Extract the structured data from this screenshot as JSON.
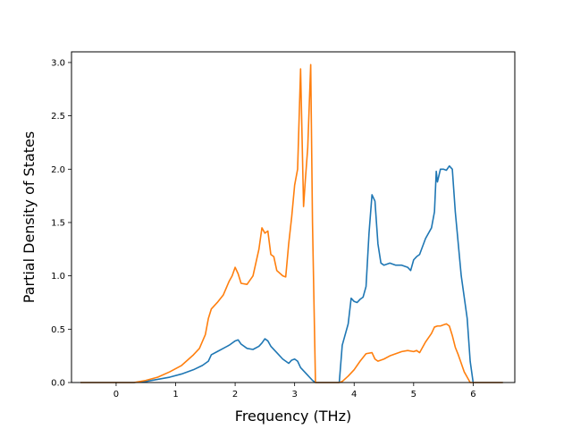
{
  "chart_data": {
    "type": "line",
    "title": "",
    "xlabel": "Frequency (THz)",
    "ylabel": "Partial Density of States",
    "xlim": [
      -0.75,
      6.7
    ],
    "ylim": [
      0.0,
      3.1
    ],
    "xticks": [
      0,
      1,
      2,
      3,
      4,
      5,
      6
    ],
    "xtick_labels": [
      "0",
      "1",
      "2",
      "3",
      "4",
      "5",
      "6"
    ],
    "yticks": [
      0.0,
      0.5,
      1.0,
      1.5,
      2.0,
      2.5,
      3.0
    ],
    "ytick_labels": [
      "0.0",
      "0.5",
      "1.0",
      "1.5",
      "2.0",
      "2.5",
      "3.0"
    ],
    "grid": false,
    "legend": "none",
    "series": [
      {
        "color": "#1f77b4",
        "x": [
          -0.6,
          0.0,
          0.3,
          0.5,
          0.7,
          0.9,
          1.1,
          1.3,
          1.45,
          1.55,
          1.6,
          1.7,
          1.8,
          1.9,
          2.0,
          2.05,
          2.1,
          2.2,
          2.3,
          2.4,
          2.45,
          2.5,
          2.55,
          2.6,
          2.7,
          2.8,
          2.9,
          2.95,
          3.0,
          3.05,
          3.1,
          3.2,
          3.3,
          3.35,
          3.5,
          3.75,
          3.8,
          3.9,
          3.95,
          4.0,
          4.05,
          4.1,
          4.15,
          4.2,
          4.25,
          4.3,
          4.35,
          4.4,
          4.45,
          4.5,
          4.6,
          4.7,
          4.8,
          4.9,
          4.95,
          5.0,
          5.05,
          5.1,
          5.2,
          5.3,
          5.35,
          5.38,
          5.4,
          5.45,
          5.5,
          5.55,
          5.6,
          5.65,
          5.7,
          5.8,
          5.85,
          5.9,
          5.95,
          6.0,
          6.5
        ],
        "values": [
          0.0,
          0.0,
          0.0,
          0.01,
          0.03,
          0.05,
          0.08,
          0.12,
          0.16,
          0.2,
          0.26,
          0.29,
          0.32,
          0.35,
          0.39,
          0.4,
          0.36,
          0.32,
          0.31,
          0.34,
          0.37,
          0.41,
          0.39,
          0.34,
          0.28,
          0.22,
          0.18,
          0.21,
          0.22,
          0.2,
          0.14,
          0.08,
          0.02,
          0.0,
          0.0,
          0.0,
          0.35,
          0.55,
          0.79,
          0.76,
          0.75,
          0.78,
          0.8,
          0.9,
          1.4,
          1.76,
          1.7,
          1.3,
          1.12,
          1.1,
          1.12,
          1.1,
          1.1,
          1.08,
          1.05,
          1.15,
          1.18,
          1.2,
          1.35,
          1.45,
          1.6,
          1.98,
          1.88,
          2.0,
          2.0,
          1.99,
          2.03,
          2.0,
          1.6,
          1.0,
          0.8,
          0.6,
          0.2,
          0.0,
          0.0
        ]
      },
      {
        "color": "#ff7f0e",
        "x": [
          -0.6,
          0.0,
          0.3,
          0.5,
          0.7,
          0.9,
          1.1,
          1.3,
          1.4,
          1.5,
          1.55,
          1.6,
          1.7,
          1.8,
          1.9,
          1.95,
          2.0,
          2.05,
          2.1,
          2.2,
          2.3,
          2.4,
          2.45,
          2.5,
          2.55,
          2.6,
          2.65,
          2.7,
          2.8,
          2.85,
          2.9,
          2.95,
          3.0,
          3.05,
          3.1,
          3.15,
          3.18,
          3.22,
          3.27,
          3.3,
          3.35,
          3.5,
          3.75,
          3.8,
          3.9,
          4.0,
          4.1,
          4.2,
          4.3,
          4.35,
          4.4,
          4.5,
          4.6,
          4.7,
          4.8,
          4.9,
          5.0,
          5.05,
          5.1,
          5.2,
          5.3,
          5.35,
          5.4,
          5.45,
          5.5,
          5.55,
          5.6,
          5.65,
          5.7,
          5.75,
          5.8,
          5.85,
          5.9,
          5.95,
          6.0,
          6.5
        ],
        "values": [
          0.0,
          0.0,
          0.0,
          0.02,
          0.05,
          0.1,
          0.16,
          0.26,
          0.32,
          0.45,
          0.6,
          0.69,
          0.75,
          0.82,
          0.95,
          1.0,
          1.08,
          1.02,
          0.93,
          0.92,
          1.0,
          1.25,
          1.45,
          1.4,
          1.42,
          1.2,
          1.18,
          1.05,
          1.0,
          0.99,
          1.3,
          1.55,
          1.85,
          2.0,
          2.94,
          1.65,
          1.9,
          2.2,
          2.98,
          1.5,
          0.0,
          0.0,
          0.0,
          0.01,
          0.06,
          0.12,
          0.2,
          0.27,
          0.28,
          0.22,
          0.2,
          0.22,
          0.25,
          0.27,
          0.29,
          0.3,
          0.29,
          0.3,
          0.28,
          0.38,
          0.46,
          0.52,
          0.53,
          0.53,
          0.54,
          0.55,
          0.53,
          0.44,
          0.33,
          0.26,
          0.18,
          0.1,
          0.05,
          0.0,
          0.0,
          0.0
        ]
      }
    ]
  }
}
